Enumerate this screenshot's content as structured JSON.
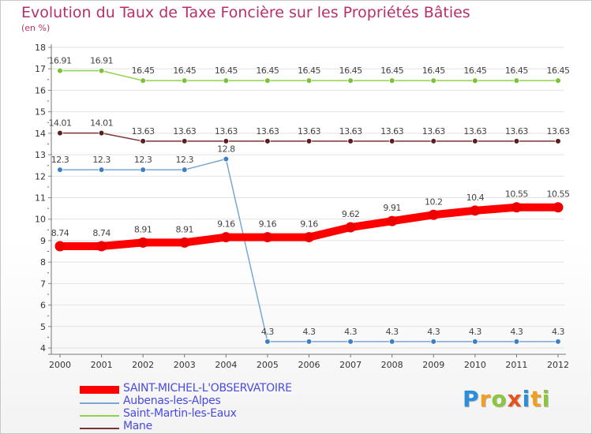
{
  "chart_data": {
    "type": "line",
    "title": "Evolution du Taux de Taxe Foncière sur les Propriétés Bâties",
    "ylabel": "(en %)",
    "ylim": [
      4,
      18
    ],
    "yticks": [
      "4",
      "5",
      "6",
      "7",
      "8",
      "9",
      "10",
      "11",
      "12",
      "13",
      "14",
      "15",
      "16",
      "17",
      "18"
    ],
    "x": [
      "2000",
      "2001",
      "2002",
      "2003",
      "2004",
      "2005",
      "2006",
      "2007",
      "2008",
      "2009",
      "2010",
      "2011",
      "2012"
    ],
    "series": [
      {
        "name": "Saint-Martin-les-Eaux",
        "color": "#8fd24a",
        "marker": "#7ac13a",
        "values": [
          16.91,
          16.91,
          16.45,
          16.45,
          16.45,
          16.45,
          16.45,
          16.45,
          16.45,
          16.45,
          16.45,
          16.45,
          16.45
        ],
        "labels": [
          "16.91",
          "16.91",
          "16.45",
          "16.45",
          "16.45",
          "16.45",
          "16.45",
          "16.45",
          "16.45",
          "16.45",
          "16.45",
          "16.45",
          "16.45"
        ]
      },
      {
        "name": "Mane",
        "color": "#7a3434",
        "marker": "#5a1e1e",
        "values": [
          14.01,
          14.01,
          13.63,
          13.63,
          13.63,
          13.63,
          13.63,
          13.63,
          13.63,
          13.63,
          13.63,
          13.63,
          13.63
        ],
        "labels": [
          "14.01",
          "14.01",
          "13.63",
          "13.63",
          "13.63",
          "13.63",
          "13.63",
          "13.63",
          "13.63",
          "13.63",
          "13.63",
          "13.63",
          "13.63"
        ]
      },
      {
        "name": "Aubenas-les-Alpes",
        "color": "#7aa6d6",
        "marker": "#3d7fc4",
        "values": [
          12.3,
          12.3,
          12.3,
          12.3,
          12.8,
          4.3,
          4.3,
          4.3,
          4.3,
          4.3,
          4.3,
          4.3,
          4.3
        ],
        "labels": [
          "12.3",
          "12.3",
          "12.3",
          "12.3",
          "12.8",
          "4.3",
          "4.3",
          "4.3",
          "4.3",
          "4.3",
          "4.3",
          "4.3",
          "4.3"
        ]
      },
      {
        "name": "SAINT-MICHEL-L'OBSERVATOIRE",
        "color": "#ff0000",
        "marker": "#ee0000",
        "thick": true,
        "values": [
          8.74,
          8.74,
          8.91,
          8.91,
          9.16,
          9.16,
          9.16,
          9.62,
          9.91,
          10.2,
          10.4,
          10.55,
          10.55
        ],
        "labels": [
          "8.74",
          "8.74",
          "8.91",
          "8.91",
          "9.16",
          "9.16",
          "9.16",
          "9.62",
          "9.91",
          "10.2",
          "10.4",
          "10.55",
          "10.55"
        ]
      }
    ],
    "legend": [
      {
        "name": "SAINT-MICHEL-L'OBSERVATOIRE",
        "color": "#ff0000"
      },
      {
        "name": "Aubenas-les-Alpes",
        "color": "#7aa6d6"
      },
      {
        "name": "Saint-Martin-les-Eaux",
        "color": "#8fd24a"
      },
      {
        "name": "Mane",
        "color": "#7a3434"
      }
    ]
  },
  "logo": {
    "letters": [
      "P",
      "r",
      "o",
      "x",
      "i",
      "t",
      "i"
    ],
    "colors": [
      "#2a8fd8",
      "#f0a020",
      "#8cc63f",
      "#e8501e",
      "#2a8fd8",
      "#f0a020",
      "#8cc63f"
    ]
  }
}
